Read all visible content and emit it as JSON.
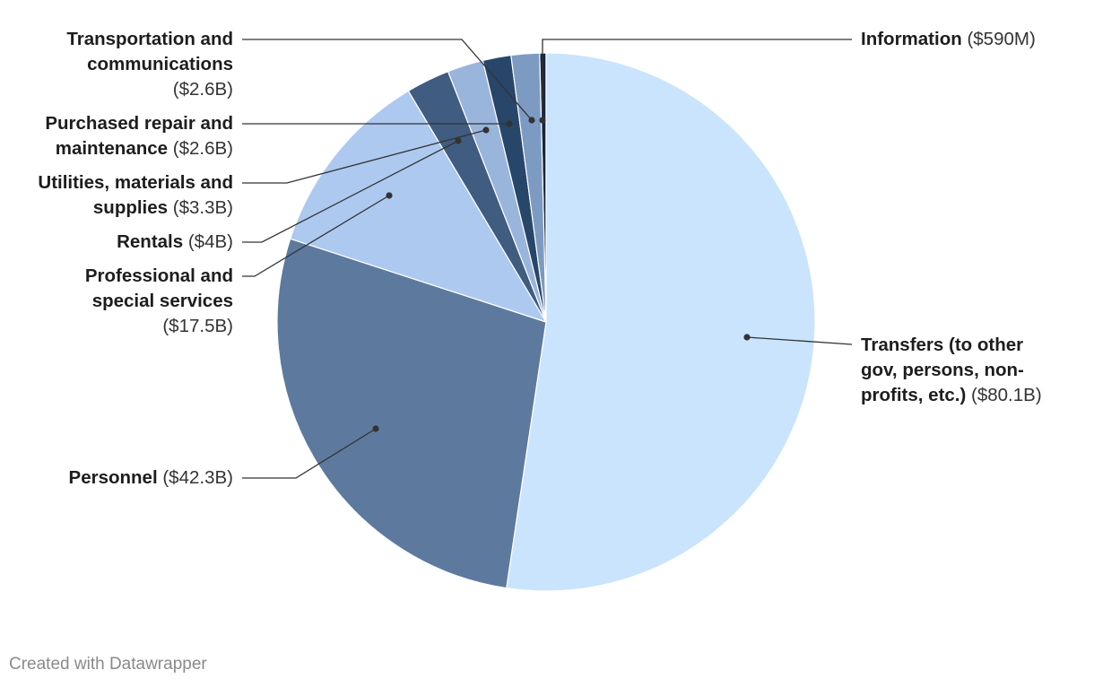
{
  "chart_data": {
    "type": "pie",
    "title": "",
    "slices": [
      {
        "name": "Information",
        "display": "$590M",
        "value": 0.59,
        "color": "#13263f"
      },
      {
        "name": "Transfers (to other gov, persons, non-profits, etc.)",
        "display": "$80.1B",
        "value": 80.1,
        "color": "#c9e4fc"
      },
      {
        "name": "Personnel",
        "display": "$42.3B",
        "value": 42.3,
        "color": "#5d7a9e"
      },
      {
        "name": "Professional and special services",
        "display": "$17.5B",
        "value": 17.5,
        "color": "#adc9f0"
      },
      {
        "name": "Rentals",
        "display": "$4B",
        "value": 4.0,
        "color": "#405c80"
      },
      {
        "name": "Utilities, materials and supplies",
        "display": "$3.3B",
        "value": 3.3,
        "color": "#9ab5dc"
      },
      {
        "name": "Purchased repair and maintenance",
        "display": "$2.6B",
        "value": 2.6,
        "color": "#284669"
      },
      {
        "name": "Transportation and communications",
        "display": "$2.6B",
        "value": 2.6,
        "color": "#7d9bc2"
      }
    ],
    "labels": {
      "information": {
        "name": "Information",
        "value": "($590M)"
      },
      "transfers": {
        "name_lines": [
          "Transfers (to other",
          "gov, persons, non-",
          "profits, etc.)"
        ],
        "value": "($80.1B)"
      },
      "personnel": {
        "name": "Personnel",
        "value": "($42.3B)"
      },
      "professional": {
        "name_lines": [
          "Professional and",
          "special services"
        ],
        "value": "($17.5B)"
      },
      "rentals": {
        "name": "Rentals",
        "value": "($4B)"
      },
      "utilities": {
        "name_lines": [
          "Utilities, materials and",
          "supplies"
        ],
        "value": "($3.3B)"
      },
      "repair": {
        "name_lines": [
          "Purchased repair and",
          "maintenance"
        ],
        "value": "($2.6B)"
      },
      "transport": {
        "name_lines": [
          "Transportation and",
          "communications"
        ],
        "value": "($2.6B)"
      }
    }
  },
  "footer": {
    "credit": "Created with Datawrapper"
  }
}
